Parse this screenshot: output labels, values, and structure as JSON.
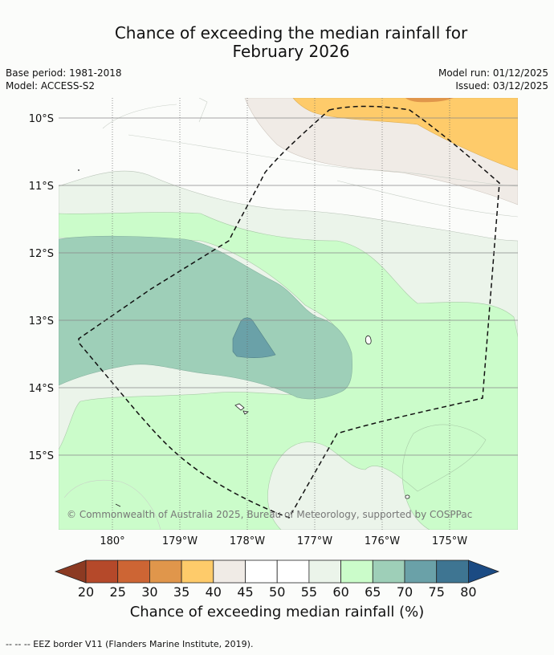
{
  "title": {
    "line1": "Chance of exceeding the median rainfall for",
    "line2": "February 2026"
  },
  "meta": {
    "base_period": "Base period: 1981-2018",
    "model": "Model: ACCESS-S2",
    "model_run": "Model run: 01/12/2025",
    "issued": "Issued: 03/12/2025"
  },
  "map": {
    "lat_labels": [
      "10°S",
      "11°S",
      "12°S",
      "13°S",
      "14°S",
      "15°S"
    ],
    "lon_labels": [
      "180°",
      "179°W",
      "178°W",
      "177°W",
      "176°W",
      "175°W"
    ],
    "copyright": "© Commonwealth of Australia 2025, Bureau of Meteorology, supported by COSPPac",
    "border_style": "dashed"
  },
  "colorbar": {
    "ticks": [
      "20",
      "25",
      "30",
      "35",
      "40",
      "45",
      "50",
      "55",
      "60",
      "65",
      "70",
      "75",
      "80"
    ],
    "colors": [
      "#8c3a22",
      "#b5492a",
      "#cd6534",
      "#e0964b",
      "#fecb6a",
      "#f0ebe6",
      "#ffffff",
      "#ffffff",
      "#ebf4ea",
      "#cbfcca",
      "#9ecfb8",
      "#6aa1a8",
      "#3e7592",
      "#1b4b83"
    ],
    "label": "Chance of exceeding median rainfall (%)"
  },
  "footnote": "--  --  -- EEZ border V11 (Flanders Marine Institute, 2019)."
}
